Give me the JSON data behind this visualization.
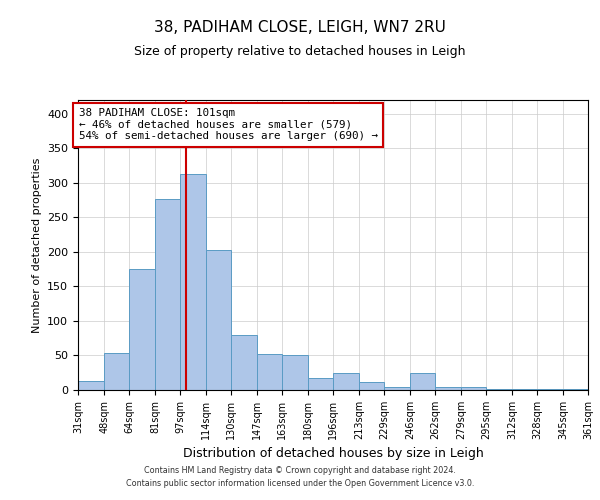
{
  "title": "38, PADIHAM CLOSE, LEIGH, WN7 2RU",
  "subtitle": "Size of property relative to detached houses in Leigh",
  "xlabel": "Distribution of detached houses by size in Leigh",
  "ylabel": "Number of detached properties",
  "bar_values": [
    13,
    54,
    175,
    277,
    313,
    203,
    80,
    52,
    51,
    17,
    25,
    11,
    5,
    25,
    5,
    5,
    2,
    1,
    1,
    1
  ],
  "bin_edges": [
    31,
    48,
    64,
    81,
    97,
    114,
    130,
    147,
    163,
    180,
    196,
    213,
    229,
    246,
    262,
    279,
    295,
    312,
    328,
    345,
    361
  ],
  "tick_labels": [
    "31sqm",
    "48sqm",
    "64sqm",
    "81sqm",
    "97sqm",
    "114sqm",
    "130sqm",
    "147sqm",
    "163sqm",
    "180sqm",
    "196sqm",
    "213sqm",
    "229sqm",
    "246sqm",
    "262sqm",
    "279sqm",
    "295sqm",
    "312sqm",
    "328sqm",
    "345sqm",
    "361sqm"
  ],
  "bar_color": "#aec6e8",
  "bar_edge_color": "#5a9bc4",
  "vline_x": 101,
  "vline_color": "#cc0000",
  "ylim": [
    0,
    420
  ],
  "yticks": [
    0,
    50,
    100,
    150,
    200,
    250,
    300,
    350,
    400
  ],
  "annotation_title": "38 PADIHAM CLOSE: 101sqm",
  "annotation_line1": "← 46% of detached houses are smaller (579)",
  "annotation_line2": "54% of semi-detached houses are larger (690) →",
  "annotation_box_color": "#cc0000",
  "footer1": "Contains HM Land Registry data © Crown copyright and database right 2024.",
  "footer2": "Contains public sector information licensed under the Open Government Licence v3.0.",
  "background_color": "#ffffff",
  "grid_color": "#cccccc"
}
